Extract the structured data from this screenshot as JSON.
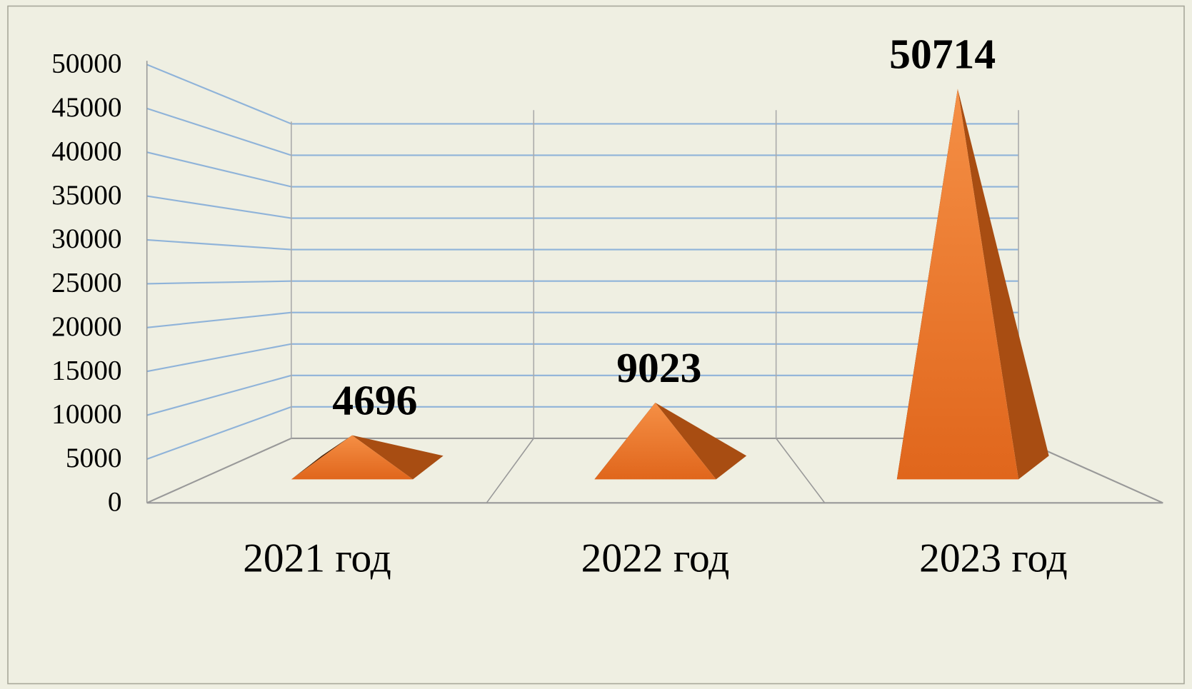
{
  "chart_data": {
    "type": "pyramid3d",
    "categories": [
      "2021 год",
      "2022 год",
      "2023 год"
    ],
    "values": [
      4696,
      9023,
      50714
    ],
    "color": "#e8732a",
    "ylim": [
      0,
      50000
    ],
    "yticks": [
      0,
      5000,
      10000,
      15000,
      20000,
      25000,
      30000,
      35000,
      40000,
      45000,
      50000
    ],
    "grid": true
  }
}
